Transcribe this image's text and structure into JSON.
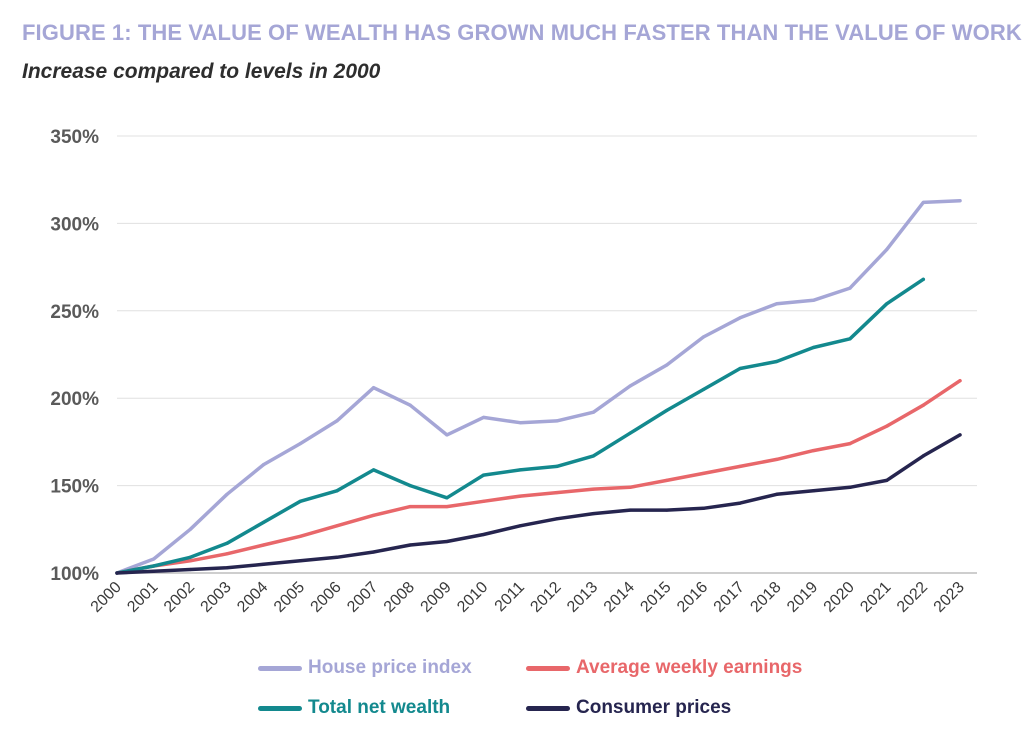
{
  "header": {
    "title": "FIGURE 1: THE VALUE OF WEALTH HAS GROWN MUCH FASTER THAN THE VALUE OF WORK",
    "subtitle": "Increase compared to levels in 2000"
  },
  "chart_data": {
    "type": "line",
    "title": "FIGURE 1: THE VALUE OF WEALTH HAS GROWN MUCH FASTER THAN THE VALUE OF WORK",
    "subtitle": "Increase compared to levels in 2000",
    "xlabel": "",
    "ylabel": "",
    "ylim": [
      100,
      350
    ],
    "yticks": [
      100,
      150,
      200,
      250,
      300,
      350
    ],
    "ytick_labels": [
      "100%",
      "150%",
      "200%",
      "250%",
      "300%",
      "350%"
    ],
    "grid": true,
    "legend_position": "bottom",
    "x": [
      "2000",
      "2001",
      "2002",
      "2003",
      "2004",
      "2005",
      "2006",
      "2007",
      "2008",
      "2009",
      "2010",
      "2011",
      "2012",
      "2013",
      "2014",
      "2015",
      "2016",
      "2017",
      "2018",
      "2019",
      "2020",
      "2021",
      "2022",
      "2023"
    ],
    "series": [
      {
        "name": "House price index",
        "color": "#a5a6d6",
        "values": [
          100,
          108,
          125,
          145,
          162,
          174,
          187,
          206,
          196,
          179,
          189,
          186,
          187,
          192,
          207,
          219,
          235,
          246,
          254,
          256,
          263,
          285,
          312,
          313
        ]
      },
      {
        "name": "Average weekly earnings",
        "color": "#e8676a",
        "values": [
          100,
          104,
          107,
          111,
          116,
          121,
          127,
          133,
          138,
          138,
          141,
          144,
          146,
          148,
          149,
          153,
          157,
          161,
          165,
          170,
          174,
          184,
          196,
          210
        ]
      },
      {
        "name": "Total net wealth",
        "color": "#13898e",
        "values": [
          100,
          104,
          109,
          117,
          129,
          141,
          147,
          159,
          150,
          143,
          156,
          159,
          161,
          167,
          180,
          193,
          205,
          217,
          221,
          229,
          234,
          254,
          268,
          null
        ]
      },
      {
        "name": "Consumer prices",
        "color": "#26254f",
        "values": [
          100,
          101,
          102,
          103,
          105,
          107,
          109,
          112,
          116,
          118,
          122,
          127,
          131,
          134,
          136,
          136,
          137,
          140,
          145,
          147,
          149,
          153,
          167,
          179
        ]
      }
    ]
  }
}
